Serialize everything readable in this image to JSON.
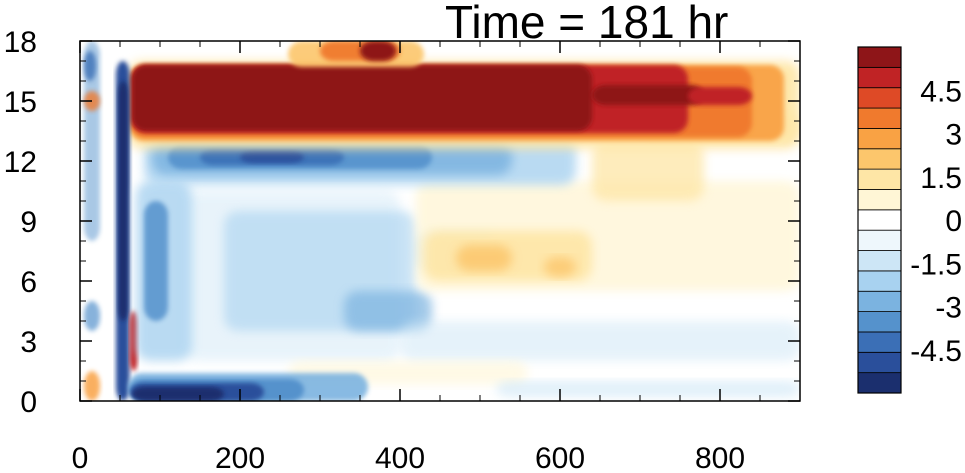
{
  "chart_data": {
    "type": "heatmap",
    "title": "Time = 181 hr",
    "xlabel": "",
    "ylabel": "",
    "xlim": [
      0,
      900
    ],
    "ylim": [
      0,
      18
    ],
    "x_ticks": [
      "0",
      "200",
      "400",
      "600",
      "800"
    ],
    "y_ticks": [
      "0",
      "3",
      "6",
      "9",
      "12",
      "15",
      "18"
    ],
    "colorbar": {
      "levels": [
        -5.25,
        -4.5,
        -3.75,
        -3,
        -2.25,
        -1.5,
        -0.75,
        -0.25,
        0.25,
        0.75,
        1.5,
        2.25,
        3,
        3.75,
        4.5,
        5.25
      ],
      "tick_labels": [
        "4.5",
        "3",
        "1.5",
        "0",
        "-1.5",
        "-3",
        "-4.5"
      ],
      "colors": [
        "#1b2f6e",
        "#2a4f9b",
        "#3b6fb6",
        "#5592cc",
        "#7bb3e0",
        "#a8d2f0",
        "#cde6f6",
        "#eef7fc",
        "#ffffff",
        "#fff6d6",
        "#fee6a6",
        "#fcc66c",
        "#f9a244",
        "#f07a2d",
        "#de4a26",
        "#c02325",
        "#8e1518"
      ]
    },
    "features": [
      {
        "desc": "strong warm jet",
        "x": [
          65,
          900
        ],
        "y": [
          13.5,
          16.5
        ],
        "value": 6
      },
      {
        "desc": "cold band below jet",
        "x": [
          90,
          520
        ],
        "y": [
          11.5,
          12.7
        ],
        "value": -4
      },
      {
        "desc": "cold surface layer",
        "x": [
          65,
          230
        ],
        "y": [
          0,
          1.2
        ],
        "value": -5.5
      },
      {
        "desc": "warm mid-level anomaly",
        "x": [
          420,
          650
        ],
        "y": [
          6,
          8.5
        ],
        "value": 2
      },
      {
        "desc": "cool mid-level region",
        "x": [
          200,
          450
        ],
        "y": [
          3,
          10
        ],
        "value": -1.5
      }
    ]
  }
}
